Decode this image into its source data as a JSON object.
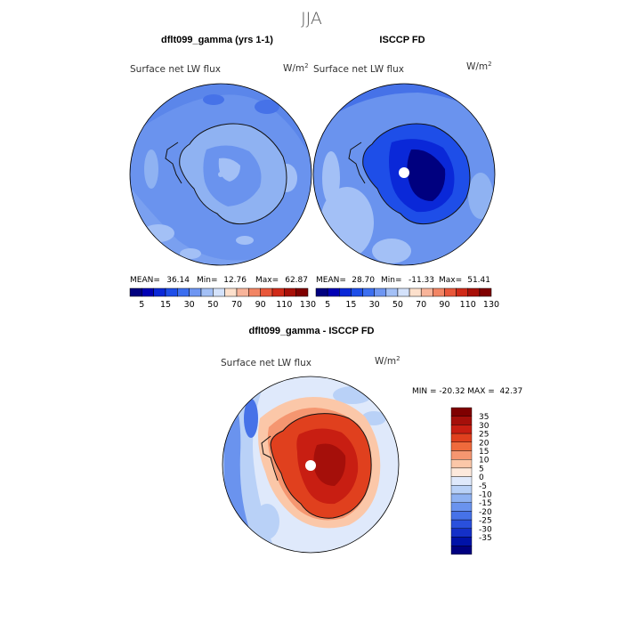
{
  "season": "JJA",
  "panels": [
    {
      "title": "dflt099_gamma (yrs 1-1)",
      "variable": "Surface net LW flux",
      "units": "W/m",
      "units_exp": "2",
      "stats": {
        "mean_label": "MEAN=",
        "mean": "36.14",
        "min_label": "Min=",
        "min": "12.76",
        "max_label": "Max=",
        "max": "62.87"
      }
    },
    {
      "title": "ISCCP FD",
      "variable": "Surface net LW flux",
      "units": "W/m",
      "units_exp": "2",
      "stats": {
        "mean_label": "MEAN=",
        "mean": "28.70",
        "min_label": "Min=",
        "min": "-11.33",
        "max_label": "Max=",
        "max": "51.41"
      }
    }
  ],
  "abs_colorbar": {
    "colors": [
      "#00007f",
      "#0000b4",
      "#0a28d8",
      "#1e4ee8",
      "#3c6ff0",
      "#6e96f2",
      "#a3c0f6",
      "#d4e2fb",
      "#fde0cc",
      "#f8b49a",
      "#f28564",
      "#e8573a",
      "#d02a18",
      "#a81008",
      "#7f0000"
    ],
    "tick_labels": [
      "5",
      "15",
      "30",
      "50",
      "70",
      "90",
      "110",
      "130"
    ]
  },
  "diff_panel": {
    "title": "dflt099_gamma - ISCCP FD",
    "variable": "Surface net LW flux",
    "units": "W/m",
    "units_exp": "2",
    "stats_line": "MIN = -20.32 MAX =  42.37"
  },
  "diff_colorbar": {
    "colors": [
      "#7f0000",
      "#a50f0a",
      "#c81e12",
      "#e0401e",
      "#ef6a3c",
      "#f59670",
      "#fbc7a8",
      "#fde9dc",
      "#dfe9fb",
      "#b9d1f7",
      "#8fb2f2",
      "#6a93ee",
      "#4672e8",
      "#2a50dc",
      "#1430c8",
      "#0012a8",
      "#000080"
    ],
    "tick_labels": [
      "35",
      "30",
      "25",
      "20",
      "15",
      "10",
      "5",
      "0",
      "-5",
      "-10",
      "-15",
      "-20",
      "-25",
      "-30",
      "-35"
    ]
  }
}
